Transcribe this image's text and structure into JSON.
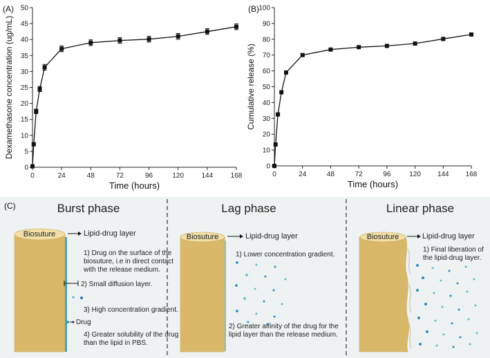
{
  "chart_data": [
    {
      "panel": "(A)",
      "type": "line",
      "xlabel": "Time (hours)",
      "ylabel": "Dexamethasone concentration (ug/mL)",
      "xlim": [
        0,
        168
      ],
      "ylim": [
        0,
        50
      ],
      "xticks": [
        0,
        24,
        48,
        72,
        96,
        120,
        144,
        168
      ],
      "yticks": [
        0,
        5,
        10,
        15,
        20,
        25,
        30,
        35,
        40,
        45,
        50
      ],
      "series": [
        {
          "name": "Dexamethasone concentration",
          "x": [
            0,
            1,
            3,
            6,
            10,
            24,
            48,
            72,
            96,
            120,
            144,
            168
          ],
          "y": [
            0.3,
            7.2,
            17.5,
            24.5,
            31.3,
            37.1,
            39.0,
            39.7,
            40.1,
            41.0,
            42.5,
            44.0
          ],
          "err": [
            0,
            0.5,
            0.7,
            0.8,
            0.9,
            0.9,
            0.9,
            0.9,
            0.9,
            0.9,
            0.9,
            0.9
          ]
        }
      ]
    },
    {
      "panel": "(B)",
      "type": "line",
      "xlabel": "Time (hours)",
      "ylabel": "Cumulative release (%)",
      "xlim": [
        0,
        168
      ],
      "ylim": [
        0,
        100
      ],
      "xticks": [
        0,
        24,
        48,
        72,
        96,
        120,
        144,
        168
      ],
      "yticks": [
        0,
        10,
        20,
        30,
        40,
        50,
        60,
        70,
        80,
        90,
        100
      ],
      "series": [
        {
          "name": "Cumulative release",
          "x": [
            0,
            1,
            3,
            6,
            10,
            24,
            48,
            72,
            96,
            120,
            144,
            168
          ],
          "y": [
            0,
            13.5,
            32.5,
            46.5,
            59.0,
            70.0,
            73.5,
            75.0,
            75.8,
            77.3,
            80.2,
            83.0
          ],
          "err": [
            0,
            0,
            0,
            0,
            0,
            0,
            0,
            0,
            0,
            0,
            0,
            0
          ]
        }
      ]
    }
  ],
  "diagram": {
    "panel_label": "(C)",
    "biosuture_label": "Biosuture",
    "lipid_label": "Lipid-drug layer",
    "drug_legend": "Drug",
    "phases": [
      {
        "title": "Burst phase",
        "notes": [
          [
            "1) Drug on the surface of the",
            "biosuture, i.e in direct contact",
            "with the release medium."
          ],
          [
            "2) Small diffusion layer."
          ],
          [
            "3) High concentration gradient."
          ],
          [
            "4) Greater solubility of the drug",
            "than the lipid in PBS."
          ]
        ]
      },
      {
        "title": "Lag phase",
        "notes": [
          [
            "1) Lower concentration gradient."
          ],
          [
            "2) Greater affinity of the drug for the",
            "lipid layer than the release medium."
          ]
        ]
      },
      {
        "title": "Linear phase",
        "notes": [
          [
            "1) Final liberation of",
            "the lipid-drug layer."
          ]
        ]
      }
    ],
    "colors": {
      "background": "#eef2f2",
      "cylinder": "#d9b86a",
      "cylinder_top": "#f1dfa6",
      "drug_dot": "#2a8fc0"
    }
  }
}
